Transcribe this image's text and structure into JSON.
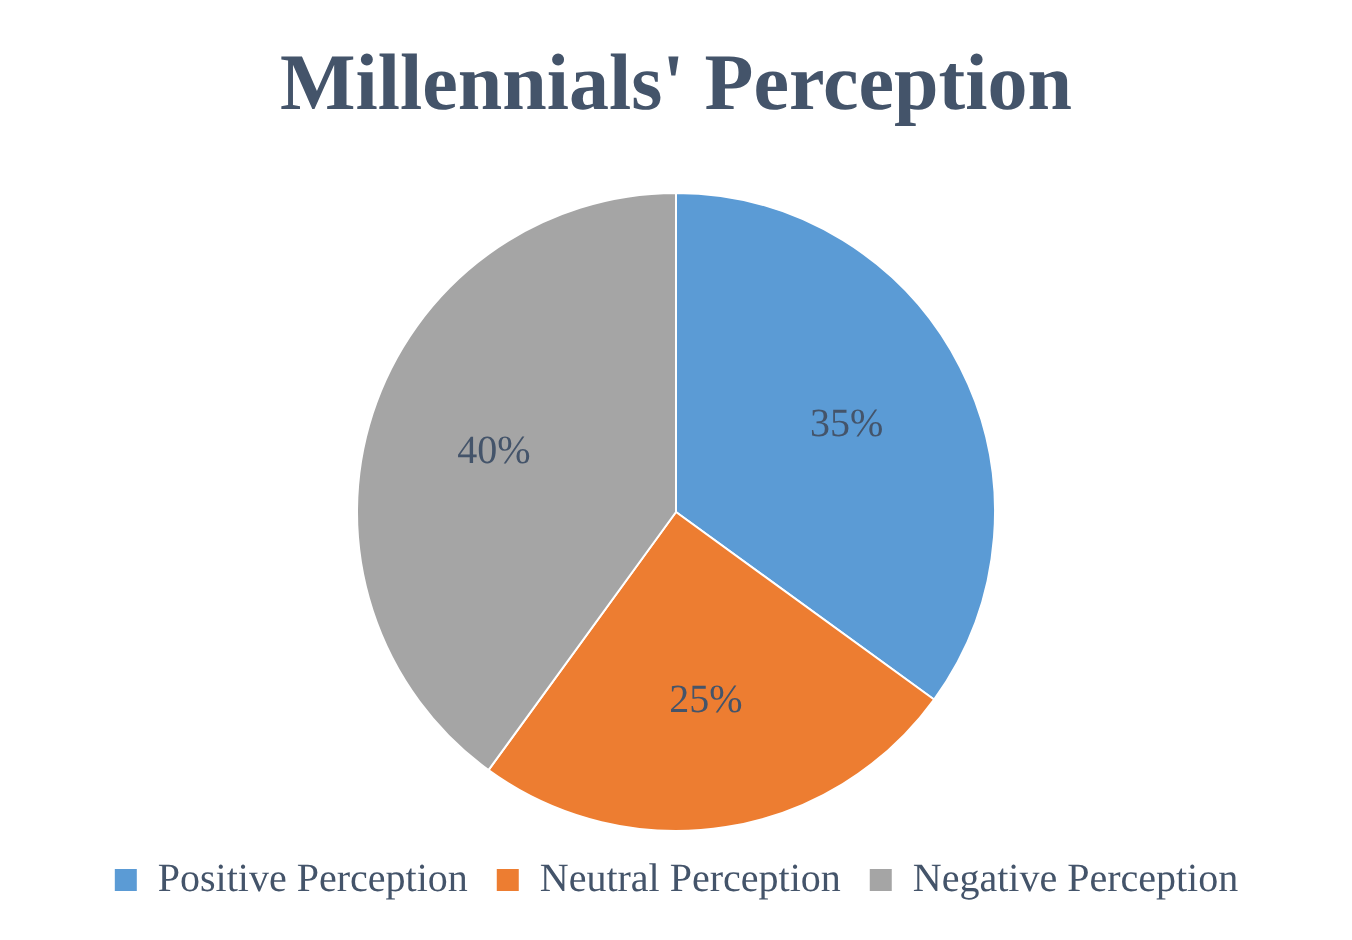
{
  "chart_data": {
    "type": "pie",
    "title": "Millennials' Perception",
    "categories": [
      "Positive Perception",
      "Neutral Perception",
      "Negative Perception"
    ],
    "values": [
      35,
      25,
      40
    ],
    "colors": [
      "#5b9bd5",
      "#ed7d31",
      "#a5a5a5"
    ],
    "value_labels": [
      "35%",
      "25%",
      "40%"
    ],
    "legend": "bottom"
  }
}
